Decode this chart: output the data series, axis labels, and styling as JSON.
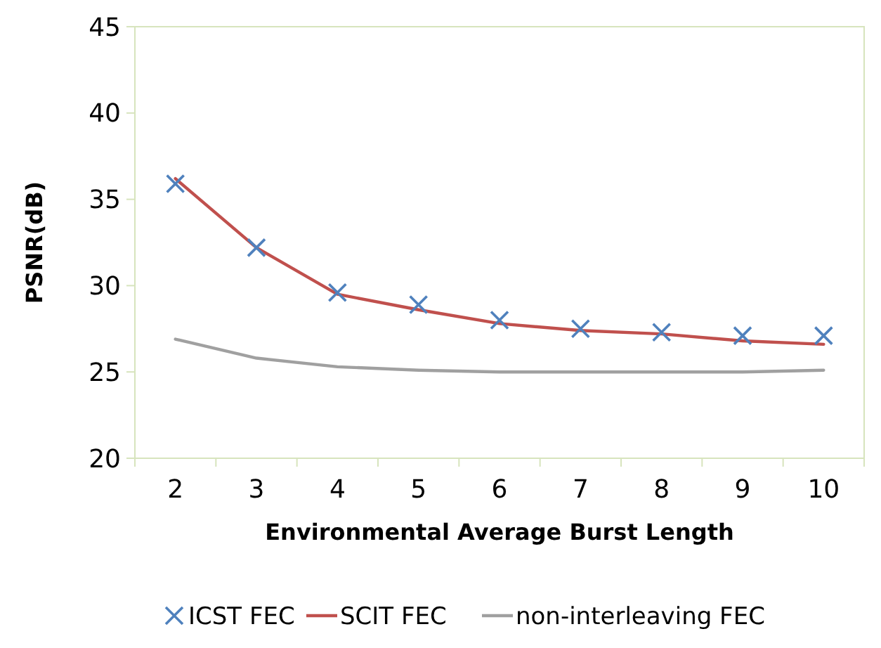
{
  "chart_data": {
    "type": "line",
    "xlabel": "Environmental Average Burst Length",
    "ylabel": "PSNR(dB)",
    "categories": [
      "2",
      "3",
      "4",
      "5",
      "6",
      "7",
      "8",
      "9",
      "10"
    ],
    "ylim": [
      20,
      45
    ],
    "yticks": [
      20,
      25,
      30,
      35,
      40,
      45
    ],
    "grid": false,
    "legend": "bottom",
    "series": [
      {
        "name": "ICST FEC",
        "type": "scatter",
        "marker": "cross",
        "color": "#4f81bd",
        "values": [
          35.9,
          32.2,
          29.6,
          28.9,
          28.0,
          27.5,
          27.3,
          27.1,
          27.1
        ]
      },
      {
        "name": "SCIT FEC",
        "marker": "none",
        "color": "#c0504d",
        "values": [
          36.2,
          32.2,
          29.5,
          28.6,
          27.8,
          27.4,
          27.2,
          26.8,
          26.6
        ]
      },
      {
        "name": "non-interleaving FEC",
        "marker": "none",
        "color": "#a0a0a0",
        "values": [
          26.9,
          25.8,
          25.3,
          25.1,
          25.0,
          25.0,
          25.0,
          25.0,
          25.1
        ]
      }
    ]
  }
}
